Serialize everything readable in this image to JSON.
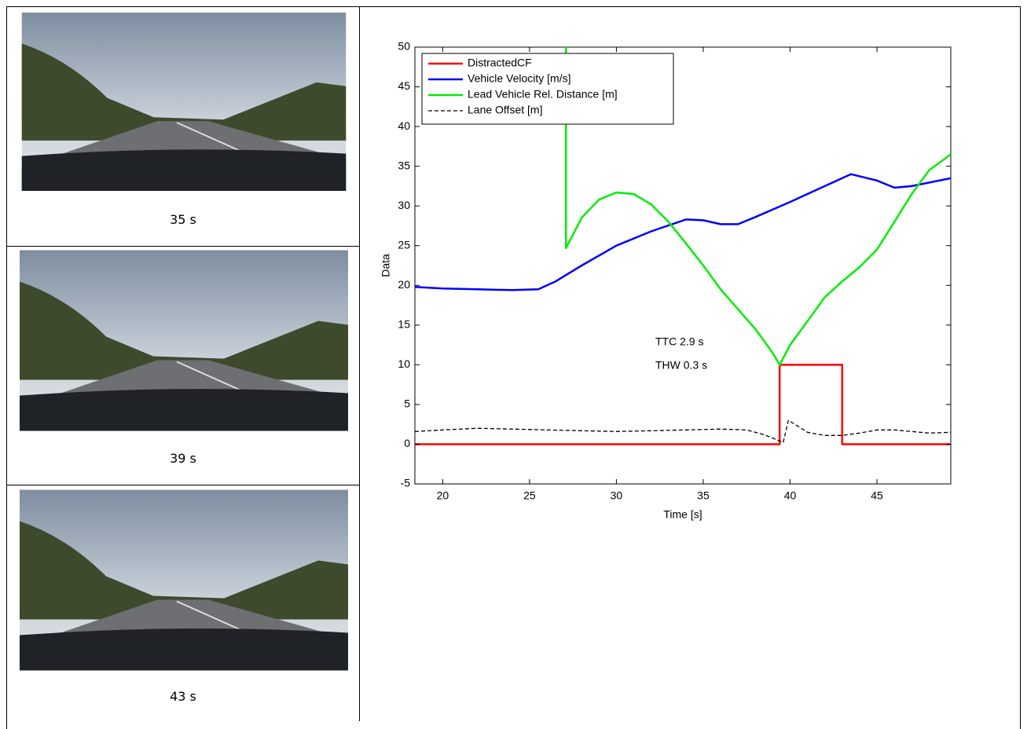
{
  "panels": [
    {
      "caption": "35 s"
    },
    {
      "caption": "39 s"
    },
    {
      "caption": "43 s"
    }
  ],
  "chart_data": {
    "type": "line",
    "xlabel": "Time [s]",
    "ylabel": "Data",
    "xlim": [
      18.4,
      49.25
    ],
    "ylim": [
      -5,
      50
    ],
    "xticks": [
      20,
      25,
      30,
      35,
      40,
      45
    ],
    "yticks": [
      -5,
      0,
      5,
      10,
      15,
      20,
      25,
      30,
      35,
      40,
      45,
      50
    ],
    "grid": false,
    "legend": "upper left",
    "annotations": [
      "TTC  2.9 s",
      "THW 0.3 s"
    ],
    "series": [
      {
        "name": "DistractedCF",
        "color": "#ff0000",
        "dash": false,
        "x": [
          18.4,
          39.4,
          39.4,
          43,
          43,
          49.25
        ],
        "values": [
          0,
          0,
          10,
          10,
          0,
          0
        ]
      },
      {
        "name": "Vehicle Velocity [m/s]",
        "color": "#0000ff",
        "dash": false,
        "x": [
          18.4,
          20,
          22,
          24,
          25.5,
          26.5,
          28,
          30,
          32,
          34,
          35,
          36,
          37,
          38,
          40,
          42,
          43.5,
          45,
          46,
          47,
          49.25
        ],
        "values": [
          19.8,
          19.6,
          19.5,
          19.4,
          19.5,
          20.5,
          22.5,
          25,
          26.8,
          28.3,
          28.2,
          27.7,
          27.7,
          28.6,
          30.5,
          32.5,
          34,
          33.2,
          32.3,
          32.5,
          33.5
        ]
      },
      {
        "name": "Lead Vehicle Rel. Distance [m]",
        "color": "#00ee00",
        "dash": false,
        "x": [
          27.1,
          27.1,
          28,
          29,
          30,
          31,
          32,
          33,
          34,
          35,
          36,
          37,
          38,
          39,
          39.4,
          40,
          41,
          42,
          43,
          44,
          45,
          46,
          47,
          48,
          49.25
        ],
        "values": [
          50,
          24.7,
          28.5,
          30.8,
          31.7,
          31.5,
          30.2,
          28,
          25.3,
          22.5,
          19.5,
          17,
          14.5,
          11.5,
          10,
          12.5,
          15.5,
          18.5,
          20.5,
          22.3,
          24.5,
          28,
          31.5,
          34.5,
          36.5
        ]
      },
      {
        "name": "Lane Offset [m]",
        "color": "#000000",
        "dash": true,
        "x": [
          18.4,
          20,
          22,
          24,
          26,
          28,
          30,
          32,
          34,
          36,
          37.5,
          38.5,
          39.3,
          39.6,
          39.9,
          40.5,
          41,
          42,
          43,
          44,
          45,
          46,
          47,
          48,
          49.25
        ],
        "values": [
          1.6,
          1.8,
          2.0,
          1.9,
          1.8,
          1.7,
          1.6,
          1.7,
          1.8,
          1.9,
          1.8,
          1.2,
          0.5,
          0.2,
          3,
          2.2,
          1.5,
          1.1,
          1.1,
          1.4,
          1.8,
          1.8,
          1.6,
          1.4,
          1.5
        ]
      }
    ]
  }
}
